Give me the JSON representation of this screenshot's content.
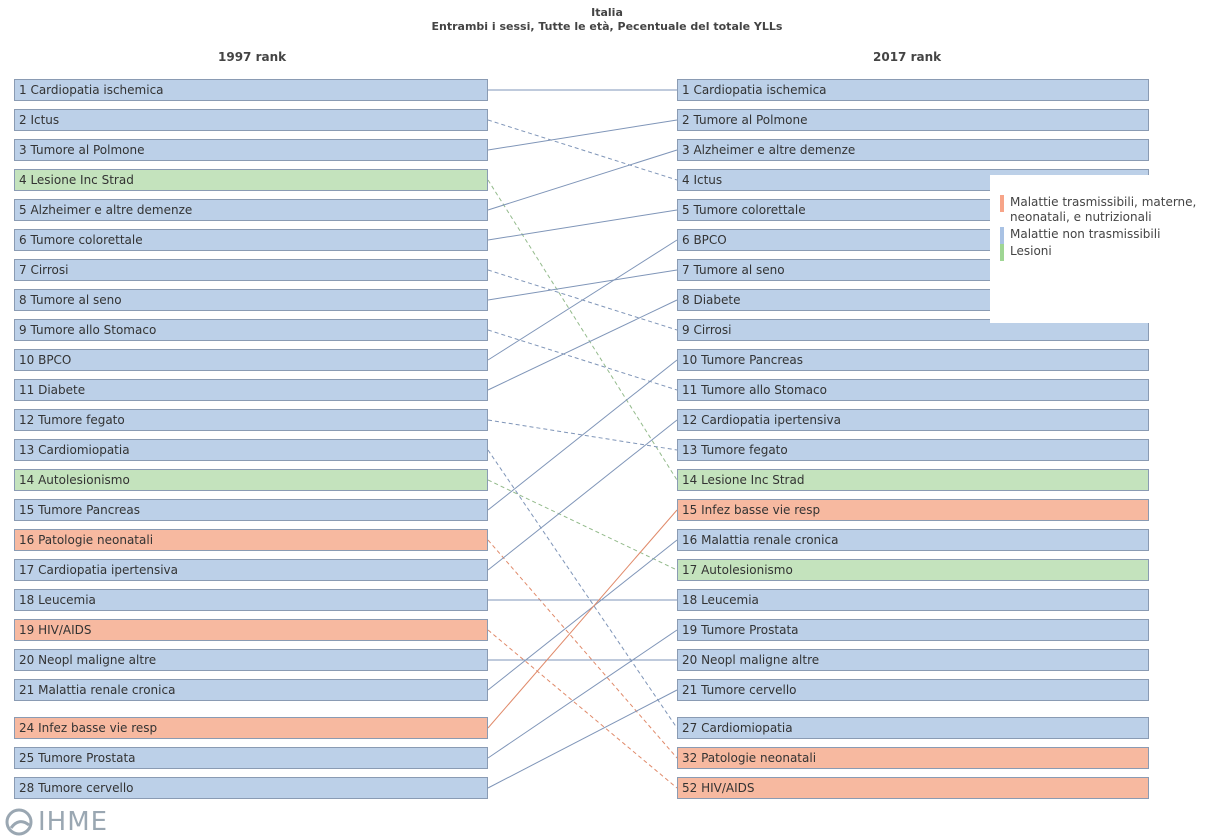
{
  "title": {
    "line1": "Italia",
    "line2": "Entrambi i sessi, Tutte le età, Pecentuale del totale YLLs"
  },
  "left_header": "1997 rank",
  "right_header": "2017 rank",
  "legend": [
    {
      "label": "Malattie trasmissibili, materne, neonatali, e nutrizionali",
      "color": "#f7a488"
    },
    {
      "label": "Malattie non trasmissibili",
      "color": "#a9c2e4"
    },
    {
      "label": "Lesioni",
      "color": "#9fd694"
    }
  ],
  "left": [
    {
      "label": "1 Cardiopatia ischemica",
      "group": "nc"
    },
    {
      "label": "2 Ictus",
      "group": "nc"
    },
    {
      "label": "3 Tumore al Polmone",
      "group": "nc"
    },
    {
      "label": "4 Lesione Inc Strad",
      "group": "inj"
    },
    {
      "label": "5 Alzheimer e altre demenze",
      "group": "nc"
    },
    {
      "label": "6 Tumore colorettale",
      "group": "nc"
    },
    {
      "label": "7 Cirrosi",
      "group": "nc"
    },
    {
      "label": "8 Tumore al seno",
      "group": "nc"
    },
    {
      "label": "9 Tumore allo Stomaco",
      "group": "nc"
    },
    {
      "label": "10 BPCO",
      "group": "nc"
    },
    {
      "label": "11 Diabete",
      "group": "nc"
    },
    {
      "label": "12 Tumore fegato",
      "group": "nc"
    },
    {
      "label": "13 Cardiomiopatia",
      "group": "nc"
    },
    {
      "label": "14 Autolesionismo",
      "group": "inj"
    },
    {
      "label": "15 Tumore Pancreas",
      "group": "nc"
    },
    {
      "label": "16 Patologie neonatali",
      "group": "cm"
    },
    {
      "label": "17 Cardiopatia ipertensiva",
      "group": "nc"
    },
    {
      "label": "18 Leucemia",
      "group": "nc"
    },
    {
      "label": "19 HIV/AIDS",
      "group": "cm"
    },
    {
      "label": "20 Neopl maligne altre",
      "group": "nc"
    },
    {
      "label": "21 Malattia renale cronica",
      "group": "nc"
    },
    {
      "label": "24 Infez basse vie resp",
      "group": "cm"
    },
    {
      "label": "25 Tumore Prostata",
      "group": "nc"
    },
    {
      "label": "28 Tumore cervello",
      "group": "nc"
    }
  ],
  "right": [
    {
      "label": "1 Cardiopatia ischemica",
      "group": "nc"
    },
    {
      "label": "2 Tumore al Polmone",
      "group": "nc"
    },
    {
      "label": "3 Alzheimer e altre demenze",
      "group": "nc"
    },
    {
      "label": "4 Ictus",
      "group": "nc"
    },
    {
      "label": "5 Tumore colorettale",
      "group": "nc"
    },
    {
      "label": "6 BPCO",
      "group": "nc"
    },
    {
      "label": "7 Tumore al seno",
      "group": "nc"
    },
    {
      "label": "8 Diabete",
      "group": "nc"
    },
    {
      "label": "9 Cirrosi",
      "group": "nc"
    },
    {
      "label": "10 Tumore Pancreas",
      "group": "nc"
    },
    {
      "label": "11 Tumore allo Stomaco",
      "group": "nc"
    },
    {
      "label": "12 Cardiopatia ipertensiva",
      "group": "nc"
    },
    {
      "label": "13 Tumore fegato",
      "group": "nc"
    },
    {
      "label": "14 Lesione Inc Strad",
      "group": "inj"
    },
    {
      "label": "15 Infez basse vie resp",
      "group": "cm"
    },
    {
      "label": "16 Malattia renale cronica",
      "group": "nc"
    },
    {
      "label": "17 Autolesionismo",
      "group": "inj"
    },
    {
      "label": "18 Leucemia",
      "group": "nc"
    },
    {
      "label": "19 Tumore Prostata",
      "group": "nc"
    },
    {
      "label": "20 Neopl maligne altre",
      "group": "nc"
    },
    {
      "label": "21 Tumore cervello",
      "group": "nc"
    },
    {
      "label": "27 Cardiomiopatia",
      "group": "nc"
    },
    {
      "label": "32 Patologie neonatali",
      "group": "cm"
    },
    {
      "label": "52 HIV/AIDS",
      "group": "cm"
    }
  ],
  "links": [
    {
      "from": 0,
      "to": 0,
      "dashed": false,
      "group": "nc"
    },
    {
      "from": 1,
      "to": 3,
      "dashed": true,
      "group": "nc"
    },
    {
      "from": 2,
      "to": 1,
      "dashed": false,
      "group": "nc"
    },
    {
      "from": 3,
      "to": 13,
      "dashed": true,
      "group": "inj"
    },
    {
      "from": 4,
      "to": 2,
      "dashed": false,
      "group": "nc"
    },
    {
      "from": 5,
      "to": 4,
      "dashed": false,
      "group": "nc"
    },
    {
      "from": 6,
      "to": 8,
      "dashed": true,
      "group": "nc"
    },
    {
      "from": 7,
      "to": 6,
      "dashed": false,
      "group": "nc"
    },
    {
      "from": 8,
      "to": 10,
      "dashed": true,
      "group": "nc"
    },
    {
      "from": 9,
      "to": 5,
      "dashed": false,
      "group": "nc"
    },
    {
      "from": 10,
      "to": 7,
      "dashed": false,
      "group": "nc"
    },
    {
      "from": 11,
      "to": 12,
      "dashed": true,
      "group": "nc"
    },
    {
      "from": 12,
      "to": 21,
      "dashed": true,
      "group": "nc"
    },
    {
      "from": 13,
      "to": 16,
      "dashed": true,
      "group": "inj"
    },
    {
      "from": 14,
      "to": 9,
      "dashed": false,
      "group": "nc"
    },
    {
      "from": 15,
      "to": 22,
      "dashed": true,
      "group": "cm"
    },
    {
      "from": 16,
      "to": 11,
      "dashed": false,
      "group": "nc"
    },
    {
      "from": 17,
      "to": 17,
      "dashed": false,
      "group": "nc"
    },
    {
      "from": 18,
      "to": 23,
      "dashed": true,
      "group": "cm"
    },
    {
      "from": 19,
      "to": 19,
      "dashed": false,
      "group": "nc"
    },
    {
      "from": 20,
      "to": 15,
      "dashed": false,
      "group": "nc"
    },
    {
      "from": 21,
      "to": 14,
      "dashed": false,
      "group": "cm"
    },
    {
      "from": 22,
      "to": 18,
      "dashed": false,
      "group": "nc"
    },
    {
      "from": 23,
      "to": 20,
      "dashed": false,
      "group": "nc"
    }
  ],
  "logo_text": "IHME"
}
